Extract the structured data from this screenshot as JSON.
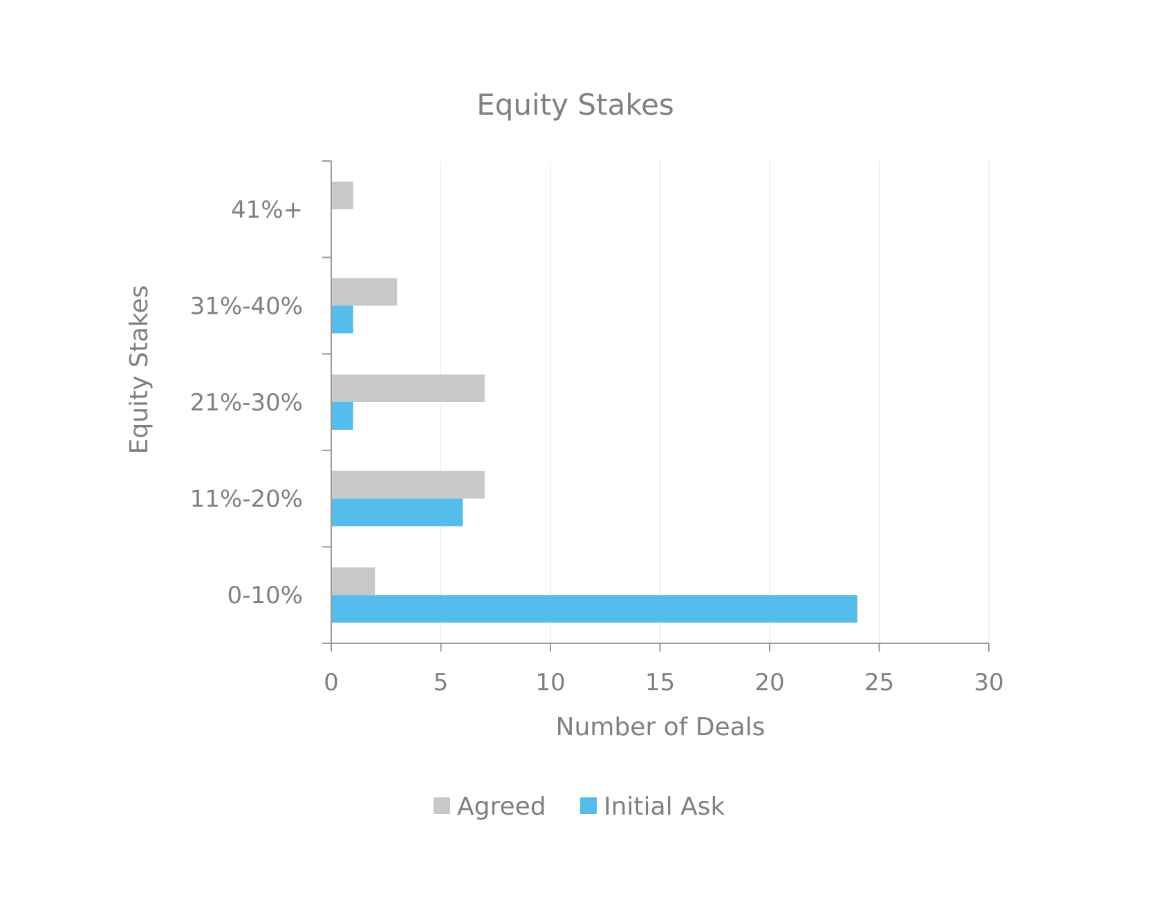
{
  "chart_data": {
    "type": "bar",
    "orientation": "horizontal",
    "title": "Equity Stakes",
    "xlabel": "Number of Deals",
    "ylabel": "Equity Stakes",
    "categories": [
      "0-10%",
      "11%-20%",
      "21%-30%",
      "31%-40%",
      "41%+"
    ],
    "series": [
      {
        "name": "Agreed",
        "values": [
          2,
          7,
          7,
          3,
          1
        ],
        "color": "#c7c8ca"
      },
      {
        "name": "Initial Ask",
        "values": [
          24,
          6,
          1,
          1,
          0
        ],
        "color": "#55bdec"
      }
    ],
    "xlim": [
      0,
      30
    ],
    "xticks": [
      0,
      5,
      10,
      15,
      20,
      25,
      30
    ],
    "grid": "vertical",
    "legend_position": "bottom"
  },
  "colors": {
    "axis": "#9a9a9b",
    "gridline": "#ececec",
    "text": "#808080"
  }
}
